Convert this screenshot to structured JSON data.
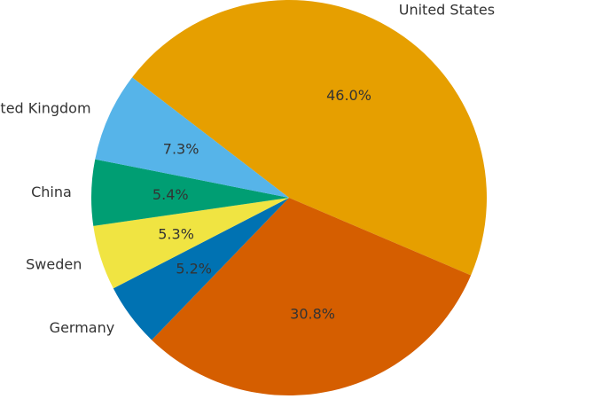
{
  "chart_data": {
    "type": "pie",
    "categories": [
      "United States",
      "",
      "Germany",
      "Sweden",
      "China",
      "United Kingdom"
    ],
    "values": [
      46.0,
      30.8,
      5.2,
      5.3,
      5.4,
      7.3
    ],
    "value_labels": [
      "46.0%",
      "30.8%",
      "5.2%",
      "5.3%",
      "5.4%",
      "7.3%"
    ],
    "colors": [
      "#E69F00",
      "#D55E00",
      "#0072B2",
      "#F0E442",
      "#009E73",
      "#56B4E9"
    ],
    "start_angle_deg": 142.5,
    "direction": "clockwise",
    "title": ""
  }
}
